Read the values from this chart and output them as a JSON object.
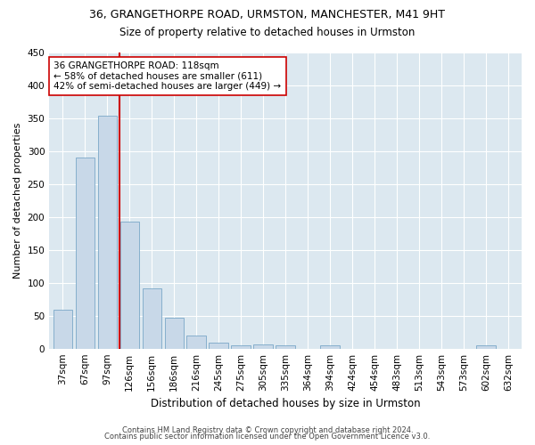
{
  "title_line1": "36, GRANGETHORPE ROAD, URMSTON, MANCHESTER, M41 9HT",
  "title_line2": "Size of property relative to detached houses in Urmston",
  "xlabel": "Distribution of detached houses by size in Urmston",
  "ylabel": "Number of detached properties",
  "footer_line1": "Contains HM Land Registry data © Crown copyright and database right 2024.",
  "footer_line2": "Contains public sector information licensed under the Open Government Licence v3.0.",
  "categories": [
    "37sqm",
    "67sqm",
    "97sqm",
    "126sqm",
    "156sqm",
    "186sqm",
    "216sqm",
    "245sqm",
    "275sqm",
    "305sqm",
    "335sqm",
    "364sqm",
    "394sqm",
    "424sqm",
    "454sqm",
    "483sqm",
    "513sqm",
    "543sqm",
    "573sqm",
    "602sqm",
    "632sqm"
  ],
  "values": [
    59,
    290,
    354,
    193,
    91,
    47,
    20,
    9,
    5,
    6,
    5,
    0,
    5,
    0,
    0,
    0,
    0,
    0,
    0,
    5,
    0
  ],
  "bar_color": "#c8d8e8",
  "bar_edge_color": "#7aa8c8",
  "vline_color": "#cc0000",
  "annotation_text": "36 GRANGETHORPE ROAD: 118sqm\n← 58% of detached houses are smaller (611)\n42% of semi-detached houses are larger (449) →",
  "annotation_box_color": "#ffffff",
  "annotation_box_edge": "#cc0000",
  "ylim": [
    0,
    450
  ],
  "yticks": [
    0,
    50,
    100,
    150,
    200,
    250,
    300,
    350,
    400,
    450
  ],
  "plot_background": "#dce8f0",
  "grid_color": "#ffffff",
  "title1_fontsize": 9,
  "title2_fontsize": 8.5,
  "xlabel_fontsize": 8.5,
  "ylabel_fontsize": 8,
  "tick_fontsize": 7.5,
  "annotation_fontsize": 7.5,
  "footer_fontsize": 6
}
